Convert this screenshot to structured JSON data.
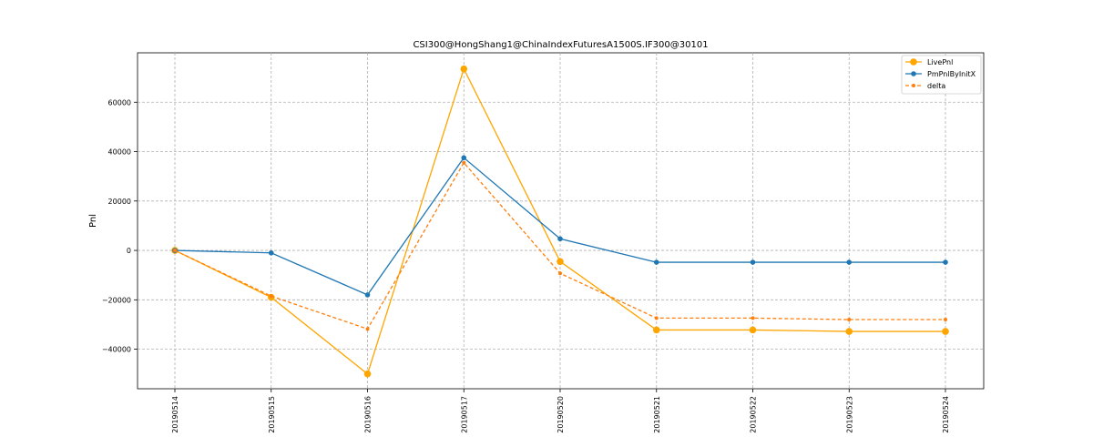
{
  "chart_data": {
    "type": "line",
    "title": "CSI300@HongShang1@ChinaIndexFuturesA1500S.IF300@30101",
    "xlabel": "",
    "ylabel": "Pnl",
    "categories": [
      "20190514",
      "20190515",
      "20190516",
      "20190517",
      "20190520",
      "20190521",
      "20190522",
      "20190523",
      "20190524"
    ],
    "ylim": [
      -56000,
      80000
    ],
    "yticks": [
      -40000,
      -20000,
      0,
      20000,
      40000,
      60000
    ],
    "grid": true,
    "legend_position": "top-right",
    "series": [
      {
        "name": "LivePnl",
        "color": "#FFA500",
        "style": "solid",
        "marker": "large-circle",
        "values": [
          0,
          -19000,
          -50000,
          73500,
          -4500,
          -32200,
          -32200,
          -32800,
          -32800
        ]
      },
      {
        "name": "PmPnlByInitX",
        "color": "#1f77b4",
        "style": "solid",
        "marker": "circle",
        "values": [
          0,
          -1000,
          -18000,
          37500,
          4700,
          -4800,
          -4800,
          -4800,
          -4800
        ]
      },
      {
        "name": "delta",
        "color": "#ff7f0e",
        "style": "dashed",
        "marker": "small-circle",
        "values": [
          0,
          -18500,
          -31800,
          35500,
          -9300,
          -27400,
          -27400,
          -28000,
          -28000
        ]
      }
    ]
  }
}
